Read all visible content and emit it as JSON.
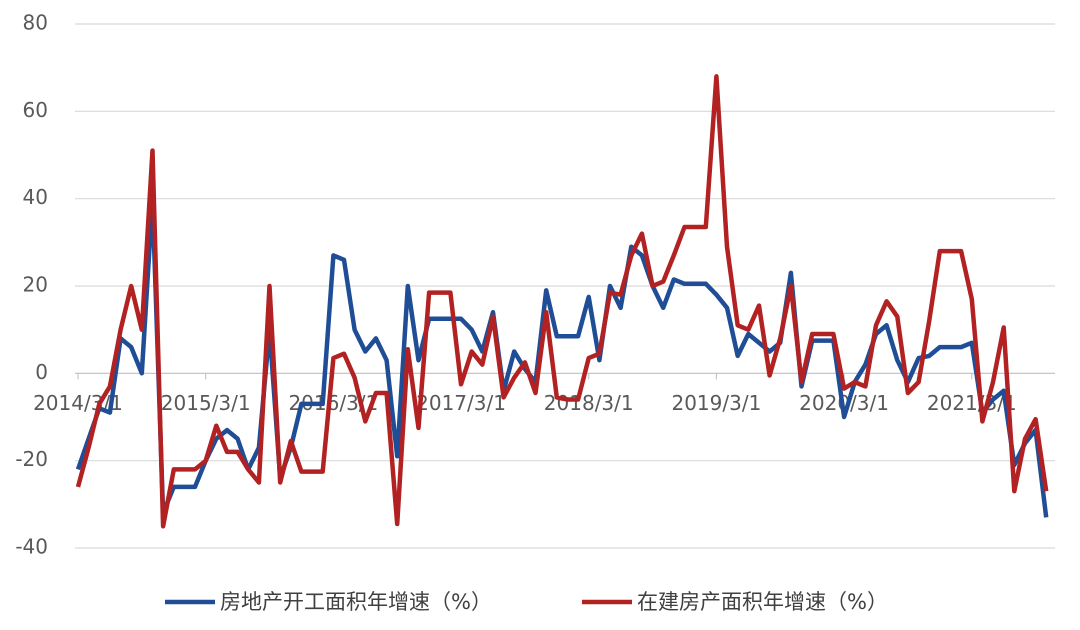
{
  "chart_data": {
    "type": "line",
    "categories": [
      "2014/3/1",
      null,
      null,
      null,
      null,
      null,
      null,
      null,
      null,
      null,
      null,
      null,
      "2015/3/1",
      null,
      null,
      null,
      null,
      null,
      null,
      null,
      null,
      null,
      null,
      null,
      "2016/3/1",
      null,
      null,
      null,
      null,
      null,
      null,
      null,
      null,
      null,
      null,
      null,
      "2017/3/1",
      null,
      null,
      null,
      null,
      null,
      null,
      null,
      null,
      null,
      null,
      null,
      "2018/3/1",
      null,
      null,
      null,
      null,
      null,
      null,
      null,
      null,
      null,
      null,
      null,
      "2019/3/1",
      null,
      null,
      null,
      null,
      null,
      null,
      null,
      null,
      null,
      null,
      null,
      "2020/3/1",
      null,
      null,
      null,
      null,
      null,
      null,
      null,
      null,
      null,
      null,
      null,
      "2021/3/1",
      null,
      null,
      null,
      null,
      null,
      null,
      null
    ],
    "series": [
      {
        "name": "房地产开工面积年增速（%）",
        "color": "#1f4e96",
        "values": [
          -22,
          -15,
          -8,
          -9,
          8,
          6,
          0,
          40,
          -32,
          -26,
          -26,
          -26,
          -20,
          -15,
          -13,
          -15,
          -22,
          -17,
          10,
          -24,
          -17,
          -7,
          -7,
          -7,
          27,
          26,
          10,
          5,
          8,
          3,
          -19,
          20,
          3,
          12.5,
          12.5,
          12.5,
          12.5,
          10,
          5,
          14,
          -4,
          5,
          1,
          -2,
          19,
          8.5,
          8.5,
          8.5,
          17.5,
          3,
          20,
          15,
          29,
          27,
          20,
          15,
          21.5,
          20.5,
          20.5,
          20.5,
          18,
          15,
          4,
          9,
          7,
          5,
          7,
          23,
          -3,
          7.5,
          7.5,
          7.5,
          -10,
          -2,
          2,
          9,
          11,
          3,
          -2,
          3.5,
          4,
          6,
          6,
          6,
          7,
          -9,
          -6,
          -4,
          -21,
          -16,
          -13,
          -33
        ]
      },
      {
        "name": "在建房产面积年增速（%）",
        "color": "#b22222",
        "values": [
          -26,
          -17,
          -7,
          -3,
          10,
          20,
          10,
          51,
          -35,
          -22,
          -22,
          -22,
          -20,
          -12,
          -18,
          -18,
          -22,
          -25,
          20,
          -25,
          -15.5,
          -22.5,
          -22.5,
          -22.5,
          3.5,
          4.5,
          -1,
          -11,
          -4.5,
          -4.5,
          -34.5,
          5.5,
          -12.5,
          18.5,
          18.5,
          18.5,
          -2.5,
          5,
          2,
          13,
          -5.5,
          -1,
          2.5,
          -4.5,
          14,
          -5.5,
          -6,
          -6,
          3.5,
          4.5,
          18.5,
          18,
          27,
          32,
          20,
          21,
          27,
          33.5,
          33.5,
          33.5,
          68,
          29,
          11,
          10,
          15.5,
          -0.5,
          8,
          20,
          -2,
          9,
          9,
          9,
          -3.5,
          -2,
          -3,
          11,
          16.5,
          13,
          -4.5,
          -2,
          12,
          28,
          28,
          28,
          17,
          -11,
          -2,
          10.5,
          -27,
          -15,
          -10.5,
          -27
        ]
      }
    ],
    "ylim": [
      -40,
      80
    ],
    "yticks": [
      -40,
      -20,
      0,
      20,
      40,
      60,
      80
    ],
    "grid": true
  }
}
